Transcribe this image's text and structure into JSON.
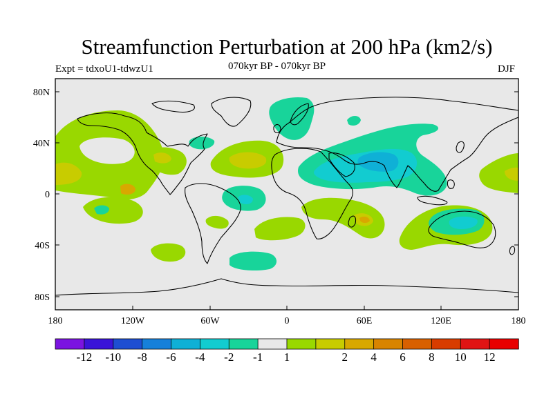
{
  "title": "Streamfunction Perturbation at 200 hPa (km2/s)",
  "subtitle_center": "070kyr BP - 070kyr BP",
  "experiment": "Expt = tdxoU1-tdwzU1",
  "season": "DJF",
  "map": {
    "lat_ticks": [
      "80N",
      "40N",
      "0",
      "40S",
      "80S"
    ],
    "lon_ticks": [
      "180",
      "120W",
      "60W",
      "0",
      "60E",
      "120E",
      "180"
    ],
    "ocean_color": "#e8e8e8"
  },
  "colorbar": {
    "colors": [
      "#7b14e0",
      "#3a14d8",
      "#1e4ed2",
      "#1680da",
      "#0fb0d6",
      "#12ccd0",
      "#18d49a",
      "#e8e8e8",
      "#99d800",
      "#c8cc00",
      "#d8a800",
      "#d88400",
      "#d86000",
      "#d83c00",
      "#e01414",
      "#e80000"
    ],
    "labels": [
      "-12",
      "-10",
      "-8",
      "-6",
      "-4",
      "-2",
      "-1",
      "1",
      "2",
      "4",
      "6",
      "8",
      "10",
      "12"
    ]
  },
  "regions": [
    {
      "level": "2",
      "color": "#99d800"
    },
    {
      "level": "4",
      "color": "#c8cc00"
    },
    {
      "level": "6",
      "color": "#d8a800"
    },
    {
      "level": "-1",
      "color": "#18d49a"
    },
    {
      "level": "-2",
      "color": "#12ccd0"
    },
    {
      "level": "-4",
      "color": "#0fb0d6"
    }
  ]
}
